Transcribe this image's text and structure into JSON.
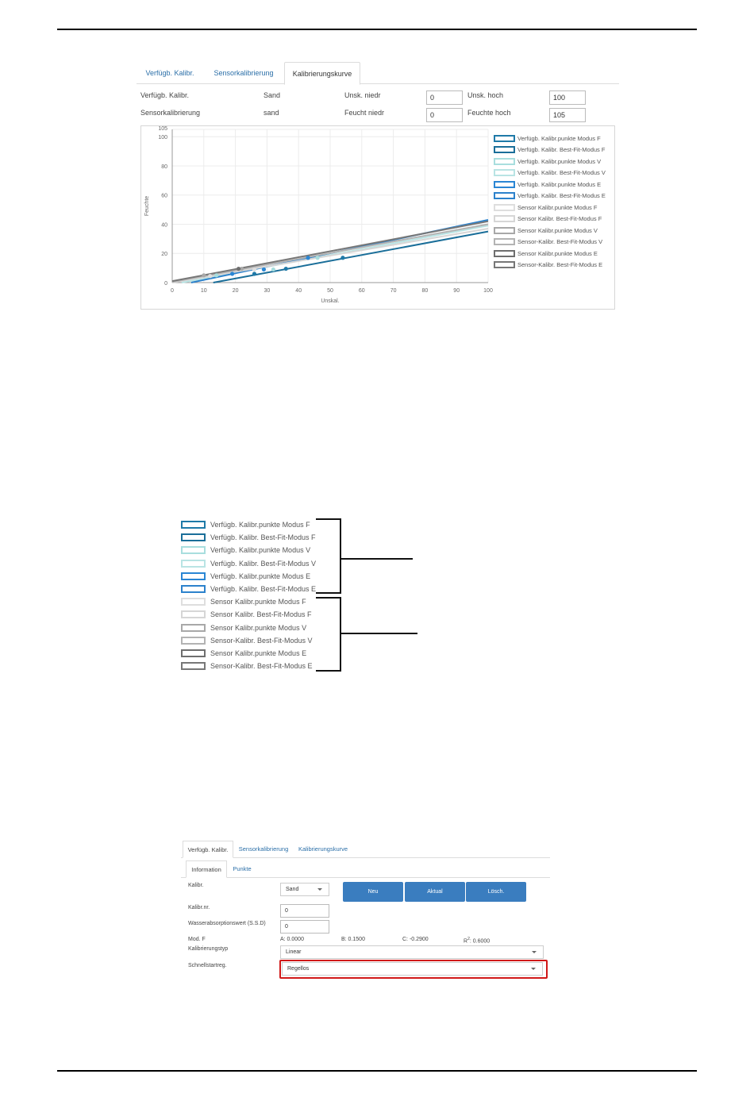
{
  "panel1": {
    "tabs": [
      "Verfügb. Kalibr.",
      "Sensorkalibrierung",
      "Kalibrierungskurve"
    ],
    "active_tab": 2,
    "fields": {
      "verf_label": "Verfügb. Kalibr.",
      "verf_value": "Sand",
      "sensor_label": "Sensorkalibrierung",
      "sensor_value": "sand",
      "unsk_niedr_label": "Unsk. niedr",
      "unsk_niedr_value": "0",
      "feucht_niedr_label": "Feucht niedr",
      "feucht_niedr_value": "0",
      "unsk_hoch_label": "Unsk. hoch",
      "unsk_hoch_value": "100",
      "feuchte_hoch_label": "Feuchte hoch",
      "feuchte_hoch_value": "105"
    }
  },
  "chart_data": {
    "type": "line",
    "xlabel": "Unskal.",
    "ylabel": "Feuchte",
    "xlim": [
      0,
      100
    ],
    "ylim": [
      0,
      105
    ],
    "x_ticks": [
      0,
      10,
      20,
      30,
      40,
      50,
      60,
      70,
      80,
      90,
      100
    ],
    "y_ticks": [
      0,
      20,
      40,
      60,
      80,
      100,
      105
    ],
    "grid": true,
    "legend_placement": "right",
    "series": [
      {
        "name": "Verfügb. Kalibr.punkte Modus F",
        "color": "#1f7aa8",
        "kind": "points",
        "points": [
          [
            26,
            6
          ],
          [
            36,
            9.5
          ],
          [
            54,
            17
          ]
        ]
      },
      {
        "name": "Verfügb. Kalibr. Best-Fit-Modus F",
        "color": "#1a6e99",
        "kind": "line",
        "points": [
          [
            13,
            0
          ],
          [
            100,
            35
          ]
        ]
      },
      {
        "name": "Verfügb. Kalibr.punkte Modus V",
        "color": "#a8dede",
        "kind": "points",
        "points": [
          [
            14,
            5
          ],
          [
            32,
            9
          ],
          [
            46,
            17
          ]
        ]
      },
      {
        "name": "Verfügb. Kalibr. Best-Fit-Modus V",
        "color": "#b9e4e4",
        "kind": "line",
        "points": [
          [
            3,
            0
          ],
          [
            100,
            39
          ]
        ]
      },
      {
        "name": "Verfügb. Kalibr.punkte Modus E",
        "color": "#2a86d4",
        "kind": "points",
        "points": [
          [
            19,
            6
          ],
          [
            29,
            9
          ],
          [
            43,
            17
          ]
        ]
      },
      {
        "name": "Verfügb. Kalibr. Best-Fit-Modus E",
        "color": "#2c82cc",
        "kind": "line",
        "points": [
          [
            6,
            0
          ],
          [
            100,
            43
          ]
        ]
      },
      {
        "name": "Sensor Kalibr.punkte Modus F",
        "color": "#dedede",
        "kind": "points",
        "points": [
          [
            12,
            4.5
          ],
          [
            26,
            9
          ]
        ]
      },
      {
        "name": "Sensor Kalibr. Best-Fit-Modus F",
        "color": "#d6d6d6",
        "kind": "line",
        "points": [
          [
            0,
            0
          ],
          [
            100,
            37
          ]
        ]
      },
      {
        "name": "Sensor Kalibr.punkte Modus V",
        "color": "#a8a8a8",
        "kind": "points",
        "points": [
          [
            10,
            5
          ],
          [
            22,
            9.5
          ]
        ]
      },
      {
        "name": "Sensor-Kalibr. Best-Fit-Modus V",
        "color": "#b3b3b3",
        "kind": "line",
        "points": [
          [
            0,
            0.5
          ],
          [
            100,
            40
          ]
        ]
      },
      {
        "name": "Sensor Kalibr.punkte Modus E",
        "color": "#6e6e6e",
        "kind": "points",
        "points": [
          [
            21,
            9.5
          ]
        ]
      },
      {
        "name": "Sensor-Kalibr. Best-Fit-Modus E",
        "color": "#777777",
        "kind": "line",
        "points": [
          [
            0,
            1
          ],
          [
            100,
            42
          ]
        ]
      }
    ]
  },
  "legend_detail": {
    "items": [
      {
        "label": "Verfügb. Kalibr.punkte Modus F",
        "color": "#1f7aa8"
      },
      {
        "label": "Verfügb. Kalibr. Best-Fit-Modus F",
        "color": "#1a6e99"
      },
      {
        "label": "Verfügb. Kalibr.punkte Modus V",
        "color": "#a8dede"
      },
      {
        "label": "Verfügb. Kalibr. Best-Fit-Modus V",
        "color": "#b9e4e4"
      },
      {
        "label": "Verfügb. Kalibr.punkte Modus E",
        "color": "#2a86d4"
      },
      {
        "label": "Verfügb. Kalibr. Best-Fit-Modus E",
        "color": "#2c82cc"
      },
      {
        "label": "Sensor Kalibr.punkte Modus F",
        "color": "#dedede"
      },
      {
        "label": "Sensor Kalibr. Best-Fit-Modus F",
        "color": "#d6d6d6"
      },
      {
        "label": "Sensor Kalibr.punkte Modus V",
        "color": "#a8a8a8"
      },
      {
        "label": "Sensor-Kalibr. Best-Fit-Modus V",
        "color": "#b3b3b3"
      },
      {
        "label": "Sensor Kalibr.punkte Modus E",
        "color": "#6e6e6e"
      },
      {
        "label": "Sensor-Kalibr. Best-Fit-Modus E",
        "color": "#777777"
      }
    ]
  },
  "panel3": {
    "tabs": [
      "Verfügb. Kalibr.",
      "Sensorkalibrierung",
      "Kalibrierungskurve"
    ],
    "subtabs": [
      "Information",
      "Punkte"
    ],
    "kalibr_label": "Kalibr.",
    "kalibr_value": "Sand",
    "kalibrnr_label": "Kalibr.nr.",
    "kalibrnr_value": "0",
    "wasser_label": "Wasserabsorptionswert (S.S.D)",
    "wasser_value": "0",
    "buttons": {
      "neu": "Neu",
      "aktual": "Aktual",
      "loesch": "Lösch."
    },
    "mod_label": "Mod. F",
    "coef_a": "A: 0.0000",
    "coef_b": "B: 0.1500",
    "coef_c": "C: -0.2900",
    "coef_r2_prefix": "R",
    "coef_r2_sup": "2",
    "coef_r2_value": ": 0.6000",
    "typ_label": "Kalibrierungstyp",
    "typ_value": "Linear",
    "schnell_label": "Schnellstartreg.",
    "schnell_value": "Regellos"
  }
}
